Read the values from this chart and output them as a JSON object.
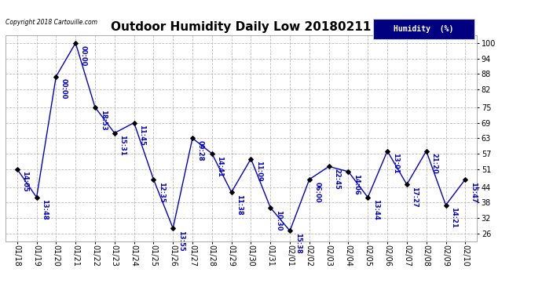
{
  "title": "Outdoor Humidity Daily Low 20180211",
  "copyright": "Copyright 2018 Cartouille.com",
  "legend_label": "Humidity  (%)",
  "x_labels": [
    "01/18",
    "01/19",
    "01/20",
    "01/21",
    "01/22",
    "01/23",
    "01/24",
    "01/25",
    "01/26",
    "01/27",
    "01/28",
    "01/29",
    "01/30",
    "01/31",
    "02/01",
    "02/02",
    "02/03",
    "02/04",
    "02/05",
    "02/06",
    "02/07",
    "02/08",
    "02/09",
    "02/10"
  ],
  "y_values": [
    51,
    40,
    87,
    100,
    75,
    65,
    69,
    47,
    28,
    63,
    57,
    42,
    55,
    36,
    27,
    47,
    52,
    50,
    40,
    58,
    45,
    58,
    37,
    47
  ],
  "point_labels": [
    "14:05",
    "13:48",
    "00:00",
    "00:00",
    "18:53",
    "15:31",
    "11:45",
    "12:35",
    "13:55",
    "09:28",
    "14:41",
    "11:38",
    "11:09",
    "10:30",
    "15:38",
    "06:00",
    "22:45",
    "14:06",
    "13:44",
    "13:01",
    "17:27",
    "21:20",
    "14:21",
    "15:47"
  ],
  "line_color": "#0000cc",
  "marker_color": "#000000",
  "label_color": "#0000cc",
  "bg_color": "#ffffff",
  "grid_color": "#bbbbbb",
  "yticks": [
    26,
    32,
    38,
    44,
    51,
    57,
    63,
    69,
    75,
    82,
    88,
    94,
    100
  ],
  "ylim": [
    23,
    103
  ],
  "title_fontsize": 11,
  "label_fontsize": 6,
  "tick_fontsize": 7,
  "legend_bg": "#000080",
  "legend_fg": "#ffffff"
}
